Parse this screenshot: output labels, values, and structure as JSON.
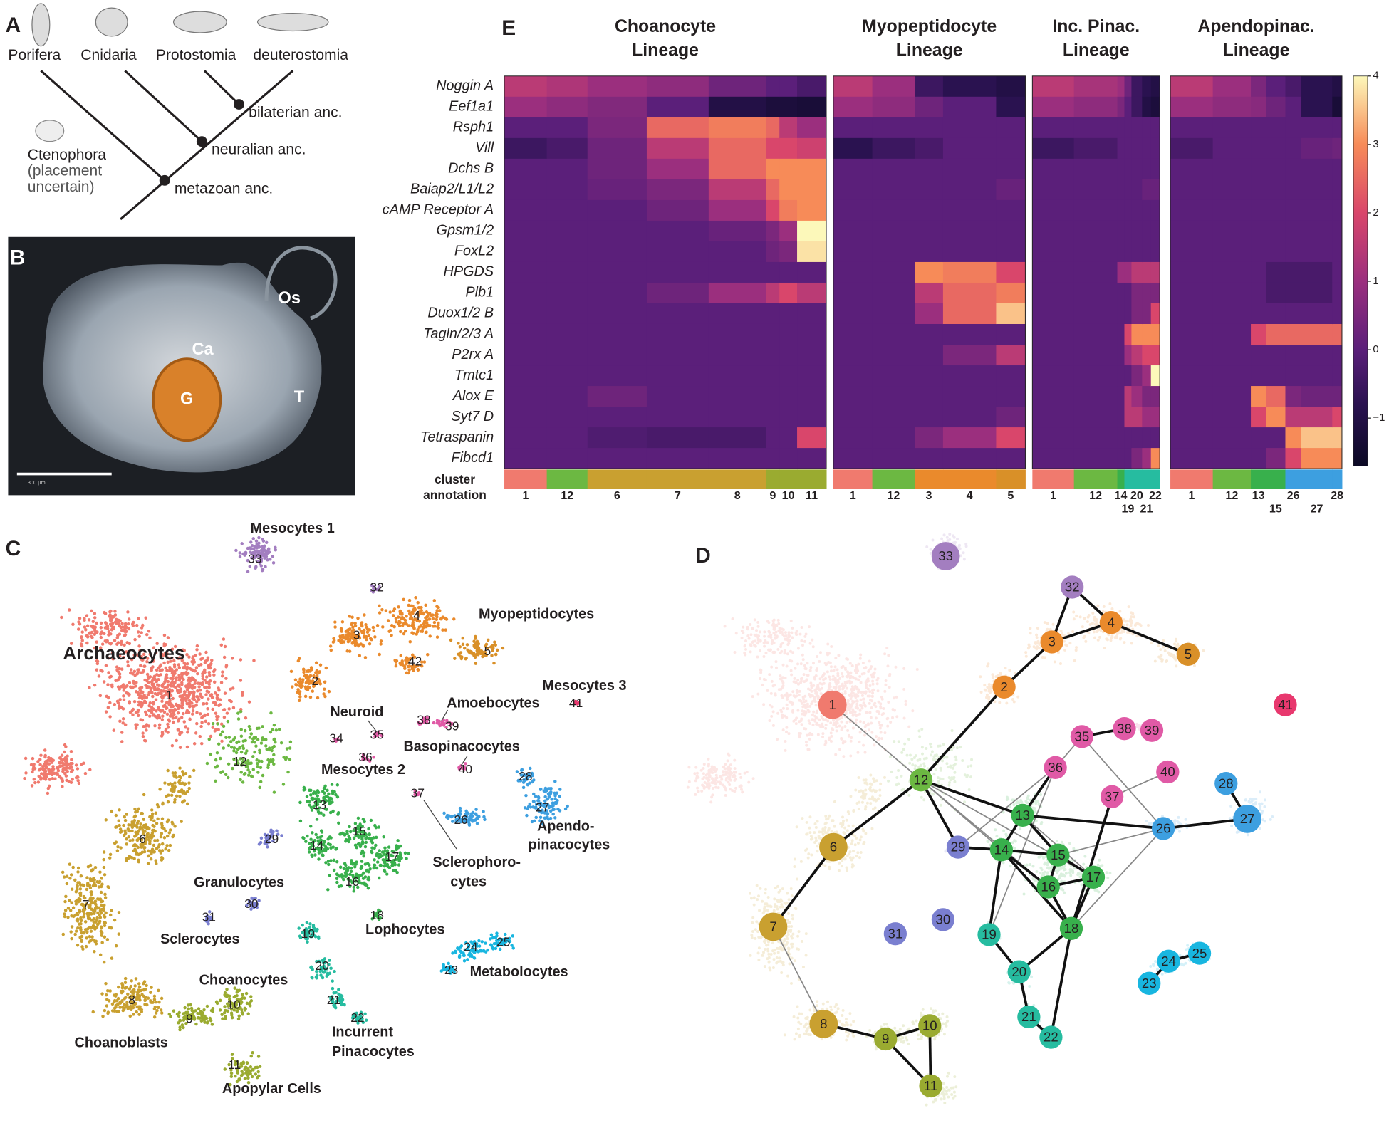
{
  "panel_a": {
    "letter": "A",
    "taxa": [
      "Porifera",
      "Cnidaria",
      "Protostomia",
      "deuterostomia"
    ],
    "ancestors": [
      "bilaterian anc.",
      "neuralian anc.",
      "metazoan anc."
    ],
    "ctenophora": [
      "Ctenophora",
      "(placement",
      "uncertain)"
    ]
  },
  "panel_b": {
    "letter": "B",
    "labels": [
      "Os",
      "Ca",
      "G",
      "T"
    ],
    "scale_bar": "300 µm"
  },
  "panel_e": {
    "letter": "E",
    "lineages": [
      {
        "title": [
          "Choanocyte",
          "Lineage"
        ],
        "clusters": [
          1,
          12,
          6,
          7,
          8,
          9,
          10,
          11
        ]
      },
      {
        "title": [
          "Myopeptidocyte",
          "Lineage"
        ],
        "clusters": [
          1,
          12,
          3,
          4,
          5
        ]
      },
      {
        "title": [
          "Inc. Pinac.",
          "Lineage"
        ],
        "clusters": [
          1,
          12,
          14,
          19,
          20,
          21,
          22
        ]
      },
      {
        "title": [
          "Apendopinac.",
          "Lineage"
        ],
        "clusters": [
          1,
          12,
          13,
          15,
          26,
          27,
          28
        ]
      }
    ],
    "annotation_label": [
      "cluster",
      "annotation"
    ],
    "genes": [
      "Noggin A",
      "Eef1a1",
      "Rsph1",
      "Vill",
      "Dchs B",
      "Baiap2/L1/L2",
      "cAMP Receptor A",
      "Gpsm1/2",
      "FoxL2",
      "HPGDS",
      "Plb1",
      "Duox1/2 B",
      "Tagln/2/3 A",
      "P2rx A",
      "Tmtc1",
      "Alox E",
      "Syt7 D",
      "Tetraspanin",
      "Fibcd1"
    ],
    "expression": [
      [
        1.5,
        1.3,
        1,
        0.8,
        0.3,
        0,
        0,
        -0.3,
        1.5,
        1,
        -0.5,
        -0.8,
        -1,
        1.5,
        1.2,
        1,
        0.3,
        -0.5,
        -0.8,
        -1,
        1.5,
        1,
        0.5,
        0,
        -0.3,
        -0.8,
        -1
      ],
      [
        1,
        0.8,
        0.6,
        0,
        -1,
        -1.2,
        -1.2,
        -1.3,
        1,
        0.8,
        0.3,
        0,
        -0.8,
        1,
        0.8,
        0.5,
        0,
        -0.5,
        -1,
        -1.2,
        1,
        0.8,
        0.7,
        0.3,
        0,
        -0.8,
        -1.3
      ],
      [
        0,
        0,
        0.5,
        2.5,
        2.8,
        2.5,
        1.5,
        1,
        0,
        0,
        0,
        0,
        0,
        0,
        0,
        0,
        0,
        0,
        0,
        0,
        0,
        0,
        0,
        0,
        0,
        0,
        0
      ],
      [
        -0.5,
        -0.3,
        0.3,
        1.5,
        2.5,
        2,
        2,
        1.8,
        -0.8,
        -0.5,
        -0.3,
        0,
        0,
        -0.5,
        -0.3,
        0,
        0,
        0,
        0,
        0,
        -0.3,
        0,
        0,
        0,
        0,
        0.2,
        0.3
      ],
      [
        0,
        0,
        0.3,
        1,
        2.5,
        3,
        3,
        3,
        0,
        0,
        0,
        0,
        0,
        0,
        0,
        0,
        0,
        0,
        0,
        0,
        0,
        0,
        0,
        0,
        0,
        0,
        0
      ],
      [
        0,
        0,
        0.2,
        0.5,
        1.5,
        2.5,
        3,
        3,
        0,
        0,
        0,
        0,
        0.2,
        0,
        0,
        0,
        0,
        0,
        0.2,
        0.2,
        0,
        0,
        0,
        0,
        0,
        0,
        0
      ],
      [
        0,
        0,
        0,
        0.3,
        1,
        2,
        2.8,
        3,
        0,
        0,
        0,
        0,
        0,
        0,
        0,
        0,
        0,
        0,
        0,
        0,
        0,
        0,
        0,
        0,
        0,
        0,
        0
      ],
      [
        0,
        0,
        0,
        0,
        0.2,
        0.5,
        1,
        4,
        0,
        0,
        0,
        0,
        0,
        0,
        0,
        0,
        0,
        0,
        0,
        0,
        0,
        0,
        0,
        0,
        0,
        0,
        0
      ],
      [
        0,
        0,
        0,
        0,
        0,
        0.3,
        0.5,
        3.8,
        0,
        0,
        0,
        0,
        0,
        0,
        0,
        0,
        0,
        0,
        0,
        0,
        0,
        0,
        0,
        0,
        0,
        0,
        0
      ],
      [
        0,
        0,
        0,
        0,
        0,
        0,
        0,
        0,
        0,
        0,
        3,
        2.8,
        2,
        0,
        0,
        1,
        1,
        1.5,
        1.5,
        1.5,
        0,
        0,
        0,
        -0.3,
        -0.3,
        -0.3,
        0
      ],
      [
        0,
        0,
        0,
        0.3,
        1,
        1.5,
        2,
        1.5,
        0,
        0,
        1.5,
        2.5,
        2.8,
        0,
        0,
        0,
        0,
        0.5,
        0.5,
        0.5,
        0,
        0,
        0,
        -0.3,
        -0.3,
        -0.3,
        0
      ],
      [
        0,
        0,
        0,
        0,
        0,
        0,
        0,
        0,
        0,
        0,
        1,
        2.5,
        3.5,
        0,
        0,
        0,
        0,
        0.5,
        0.5,
        2,
        0,
        0,
        0,
        0,
        0,
        0,
        0
      ],
      [
        0,
        0,
        0,
        0,
        0,
        0,
        0,
        0,
        0,
        0,
        0,
        0,
        0,
        0,
        0,
        0,
        2,
        3,
        3,
        3,
        0,
        0,
        2,
        2.5,
        2.5,
        2.5,
        2.5
      ],
      [
        0,
        0,
        0,
        0,
        0,
        0,
        0,
        0,
        0,
        0,
        0,
        0.5,
        1.5,
        0,
        0,
        0,
        1,
        1.5,
        2,
        2,
        0,
        0,
        0,
        0,
        0,
        0,
        0
      ],
      [
        0,
        0,
        0,
        0,
        0,
        0,
        0,
        0,
        0,
        0,
        0,
        0,
        0,
        0,
        0,
        0,
        0,
        0.5,
        1,
        4,
        0,
        0,
        0,
        0,
        0,
        0,
        0
      ],
      [
        0,
        0,
        0.3,
        0,
        0,
        0,
        0,
        0,
        0,
        0,
        0,
        0,
        0,
        0,
        0,
        0,
        1.5,
        1,
        0.5,
        0.5,
        0,
        0,
        3,
        2.5,
        0.5,
        0.3,
        0.3
      ],
      [
        0,
        0,
        0,
        0,
        0,
        0,
        0,
        0,
        0,
        0,
        0,
        0,
        0.3,
        0,
        0,
        0,
        1.5,
        1.5,
        1,
        1,
        0,
        0,
        2,
        3,
        1.5,
        1.5,
        2
      ],
      [
        0,
        0,
        -0.2,
        -0.3,
        -0.3,
        0,
        0,
        2,
        0,
        0,
        0.5,
        1,
        2,
        0,
        0,
        0,
        0,
        0,
        0,
        0,
        0,
        0,
        0,
        0,
        3,
        3.5,
        3.5
      ],
      [
        0,
        0,
        0,
        0,
        0,
        0,
        0,
        0,
        0,
        0,
        0,
        0,
        0,
        0,
        0,
        0,
        0,
        0.5,
        1,
        3,
        0,
        0,
        0,
        0.5,
        2,
        3,
        3
      ]
    ],
    "colorbar": {
      "lim": [
        -1.7,
        4
      ],
      "ticks": [
        4,
        3,
        2,
        1,
        0,
        {
          "value": -1,
          "label": "−1"
        }
      ]
    }
  },
  "panel_c": {
    "letter": "C",
    "cell_types": [
      [
        "Mesocytes 1"
      ],
      [
        "Myopeptidocytes"
      ],
      [
        "Archaeocytes"
      ],
      [
        "Mesocytes 3"
      ],
      [
        "Amoebocytes"
      ],
      [
        "Neuroid"
      ],
      [
        "Basopinacocytes"
      ],
      [
        "Mesocytes 2"
      ],
      [
        "Apendo-",
        "pinacocytes"
      ],
      [
        "Sclerophoro-",
        "cytes"
      ],
      [
        "Granulocytes"
      ],
      [
        "Sclerocytes"
      ],
      [
        "Lophocytes"
      ],
      [
        "Choanocytes"
      ],
      [
        "Metabolocytes"
      ],
      [
        "Choanoblasts"
      ],
      [
        "Incurrent",
        "Pinacocytes"
      ],
      [
        "Apopylar Cells"
      ]
    ],
    "clusters": [
      1,
      2,
      3,
      4,
      5,
      6,
      7,
      8,
      9,
      10,
      11,
      12,
      13,
      14,
      15,
      16,
      17,
      18,
      19,
      20,
      21,
      22,
      23,
      24,
      25,
      26,
      27,
      28,
      29,
      30,
      31,
      32,
      33,
      34,
      35,
      36,
      37,
      38,
      39,
      40,
      41,
      42
    ]
  },
  "panel_d": {
    "letter": "D",
    "nodes": [
      1,
      2,
      3,
      4,
      5,
      6,
      7,
      8,
      9,
      10,
      11,
      12,
      13,
      14,
      15,
      16,
      17,
      18,
      19,
      20,
      21,
      22,
      23,
      24,
      25,
      26,
      27,
      28,
      29,
      30,
      31,
      32,
      33,
      35,
      36,
      37,
      38,
      39,
      40,
      41
    ]
  }
}
